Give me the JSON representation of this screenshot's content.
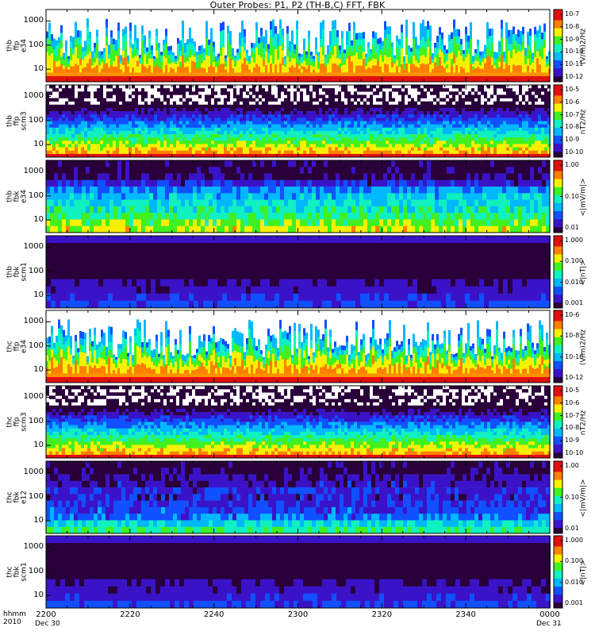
{
  "title": "Outer Probes: P1, P2 (TH-B,C) FFT, FBK",
  "colors": {
    "background": "#ffffff",
    "axis": "#000000",
    "colormap": [
      "#2a003a",
      "#3a13c8",
      "#1050ff",
      "#00b8ff",
      "#10f0c0",
      "#40f020",
      "#f8f000",
      "#ff8000",
      "#e01010"
    ]
  },
  "chart_data": [
    {
      "type": "heatmap",
      "panel_label": [
        "thb",
        "ffp",
        "e34"
      ],
      "yscale": "log",
      "yticks": [
        "1000",
        "100",
        "10"
      ],
      "colorbar_ticks": [
        "10-7",
        "10-8",
        "10-9",
        "10-10",
        "10-11",
        "10-12"
      ],
      "colorbar_label": "(V/m)2/Hz",
      "texture": "spiky"
    },
    {
      "type": "heatmap",
      "panel_label": [
        "thb",
        "ffp",
        "scm3"
      ],
      "yscale": "log",
      "yticks": [
        "1000",
        "100",
        "10"
      ],
      "colorbar_ticks": [
        "10-5",
        "10-6",
        "10-7",
        "10-8",
        "10-9",
        "10-10"
      ],
      "colorbar_label": "nT2/Hz",
      "texture": "noisy"
    },
    {
      "type": "heatmap",
      "panel_label": [
        "thb",
        "fbk",
        "e34"
      ],
      "yscale": "log",
      "yticks": [
        "1000",
        "100",
        "10"
      ],
      "colorbar_ticks": [
        "1.00",
        "0.10",
        "0.01"
      ],
      "colorbar_label": "<|mV/m|>",
      "texture": "bands"
    },
    {
      "type": "heatmap",
      "panel_label": [
        "thb",
        "fbk",
        "scm1"
      ],
      "yscale": "log",
      "yticks": [
        "1000",
        "100",
        "10"
      ],
      "colorbar_ticks": [
        "1.000",
        "0.100",
        "0.010",
        "0.001"
      ],
      "colorbar_label": "<|nT|>",
      "texture": "dark"
    },
    {
      "type": "heatmap",
      "panel_label": [
        "thc",
        "ffp",
        "e34"
      ],
      "yscale": "log",
      "yticks": [
        "1000",
        "100",
        "10"
      ],
      "colorbar_ticks": [
        "10-6",
        "10-8",
        "10-10",
        "10-12"
      ],
      "colorbar_label": "(V/m)2/Hz",
      "texture": "spiky"
    },
    {
      "type": "heatmap",
      "panel_label": [
        "thc",
        "ffp",
        "scm3"
      ],
      "yscale": "log",
      "yticks": [
        "1000",
        "100",
        "10"
      ],
      "colorbar_ticks": [
        "10-5",
        "10-6",
        "10-7",
        "10-8",
        "10-9",
        "10-10"
      ],
      "colorbar_label": "nT2/Hz",
      "texture": "noisy"
    },
    {
      "type": "heatmap",
      "panel_label": [
        "thc",
        "fbk",
        "e12"
      ],
      "yscale": "log",
      "yticks": [
        "1000",
        "100",
        "10"
      ],
      "colorbar_ticks": [
        "1.00",
        "0.10",
        "0.01"
      ],
      "colorbar_label": "<|mV/m|>",
      "texture": "bands2"
    },
    {
      "type": "heatmap",
      "panel_label": [
        "thc",
        "fbk",
        "scm1"
      ],
      "yscale": "log",
      "yticks": [
        "1000",
        "100",
        "10"
      ],
      "colorbar_ticks": [
        "1.000",
        "0.100",
        "0.010",
        "0.001"
      ],
      "colorbar_label": "<|nT|>",
      "texture": "dark"
    }
  ],
  "xaxis": {
    "ticks": [
      "2200",
      "2220",
      "2240",
      "2300",
      "2320",
      "2340",
      "0000"
    ],
    "start_label": [
      "hhmm",
      "2010"
    ],
    "start_date": "Dec 30",
    "end_date": "Dec 31"
  }
}
